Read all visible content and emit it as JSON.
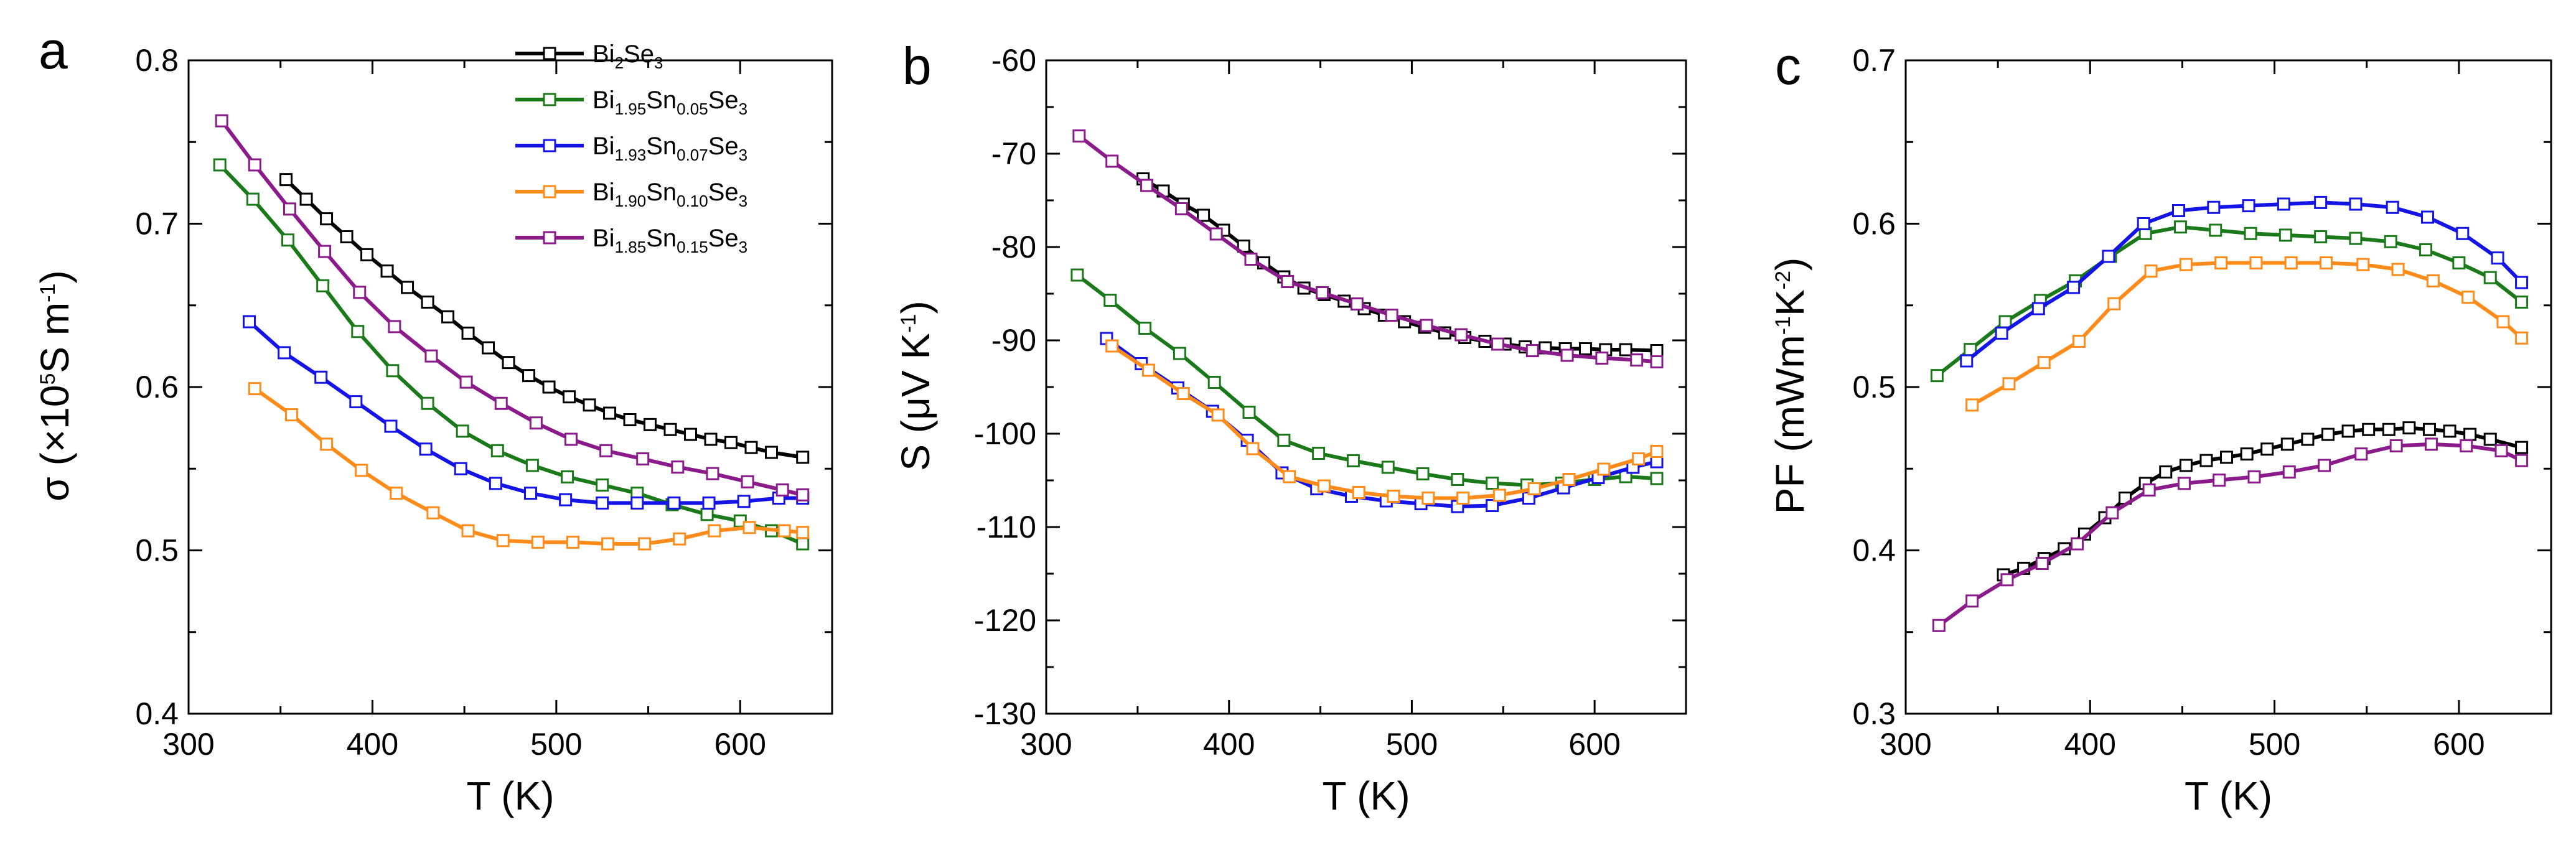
{
  "chart_data": [
    {
      "type": "line",
      "panel_label": "a",
      "xlabel": "T (K)",
      "ylabel": {
        "parts": [
          {
            "t": "σ (×10"
          },
          {
            "t": "5",
            "s": "sup"
          },
          {
            "t": "S m"
          },
          {
            "t": "-1",
            "s": "sup"
          },
          {
            "t": ")"
          }
        ]
      },
      "xlim": [
        300,
        650
      ],
      "ylim": [
        0.4,
        0.8
      ],
      "xticks": [
        300,
        400,
        500,
        600
      ],
      "yticks": [
        0.4,
        0.5,
        0.6,
        0.7,
        0.8
      ],
      "series": [
        {
          "name": "Bi2Se3",
          "color": "#000000",
          "x": [
            353,
            364,
            375,
            386,
            397,
            408,
            419,
            430,
            441,
            452,
            463,
            474,
            485,
            496,
            507,
            518,
            529,
            540,
            551,
            562,
            573,
            584,
            595,
            606,
            617,
            634
          ],
          "y": [
            0.727,
            0.715,
            0.703,
            0.692,
            0.681,
            0.671,
            0.661,
            0.652,
            0.643,
            0.633,
            0.624,
            0.615,
            0.607,
            0.6,
            0.594,
            0.589,
            0.584,
            0.58,
            0.577,
            0.574,
            0.571,
            0.568,
            0.566,
            0.563,
            0.56,
            0.557
          ]
        },
        {
          "name": "Bi1.95Sn0.05Se3",
          "color": "#1a7a1a",
          "x": [
            317,
            335,
            354,
            373,
            392,
            411,
            430,
            449,
            468,
            487,
            506,
            525,
            544,
            563,
            582,
            600,
            617,
            634
          ],
          "y": [
            0.736,
            0.715,
            0.69,
            0.662,
            0.634,
            0.61,
            0.59,
            0.573,
            0.561,
            0.552,
            0.545,
            0.54,
            0.535,
            0.528,
            0.522,
            0.518,
            0.512,
            0.504
          ]
        },
        {
          "name": "Bi1.93Sn0.07Se3",
          "color": "#1414e6",
          "x": [
            333,
            352,
            372,
            391,
            410,
            429,
            448,
            467,
            486,
            505,
            525,
            544,
            564,
            583,
            602,
            621,
            634
          ],
          "y": [
            0.64,
            0.621,
            0.606,
            0.591,
            0.576,
            0.562,
            0.55,
            0.541,
            0.535,
            0.531,
            0.529,
            0.529,
            0.529,
            0.529,
            0.53,
            0.532,
            0.532
          ]
        },
        {
          "name": "Bi1.90Sn0.10Se3",
          "color": "#ff8c1a",
          "x": [
            336,
            356,
            375,
            394,
            413,
            433,
            452,
            471,
            490,
            509,
            528,
            548,
            567,
            586,
            605,
            624,
            634
          ],
          "y": [
            0.599,
            0.583,
            0.565,
            0.549,
            0.535,
            0.523,
            0.512,
            0.506,
            0.505,
            0.505,
            0.504,
            0.504,
            0.507,
            0.512,
            0.514,
            0.512,
            0.511
          ]
        },
        {
          "name": "Bi1.85Sn0.15Se3",
          "color": "#8b1a8b",
          "x": [
            318,
            336,
            355,
            374,
            393,
            412,
            432,
            451,
            470,
            489,
            508,
            527,
            547,
            566,
            585,
            604,
            623,
            634
          ],
          "y": [
            0.763,
            0.736,
            0.709,
            0.683,
            0.658,
            0.637,
            0.619,
            0.603,
            0.59,
            0.578,
            0.568,
            0.561,
            0.556,
            0.551,
            0.547,
            0.542,
            0.537,
            0.534
          ]
        }
      ],
      "legend": {
        "position": "top-right",
        "entries": [
          {
            "parts": [
              {
                "t": "Bi"
              },
              {
                "t": "2",
                "s": "sub"
              },
              {
                "t": "Se"
              },
              {
                "t": "3",
                "s": "sub"
              }
            ],
            "color": "#000000"
          },
          {
            "parts": [
              {
                "t": "Bi"
              },
              {
                "t": "1.95",
                "s": "sub"
              },
              {
                "t": "Sn"
              },
              {
                "t": "0.05",
                "s": "sub"
              },
              {
                "t": "Se"
              },
              {
                "t": "3",
                "s": "sub"
              }
            ],
            "color": "#1a7a1a"
          },
          {
            "parts": [
              {
                "t": "Bi"
              },
              {
                "t": "1.93",
                "s": "sub"
              },
              {
                "t": "Sn"
              },
              {
                "t": "0.07",
                "s": "sub"
              },
              {
                "t": "Se"
              },
              {
                "t": "3",
                "s": "sub"
              }
            ],
            "color": "#1414e6"
          },
          {
            "parts": [
              {
                "t": "Bi"
              },
              {
                "t": "1.90",
                "s": "sub"
              },
              {
                "t": "Sn"
              },
              {
                "t": "0.10",
                "s": "sub"
              },
              {
                "t": "Se"
              },
              {
                "t": "3",
                "s": "sub"
              }
            ],
            "color": "#ff8c1a"
          },
          {
            "parts": [
              {
                "t": "Bi"
              },
              {
                "t": "1.85",
                "s": "sub"
              },
              {
                "t": "Sn"
              },
              {
                "t": "0.15",
                "s": "sub"
              },
              {
                "t": "Se"
              },
              {
                "t": "3",
                "s": "sub"
              }
            ],
            "color": "#8b1a8b"
          }
        ]
      }
    },
    {
      "type": "line",
      "panel_label": "b",
      "xlabel": "T (K)",
      "ylabel": {
        "parts": [
          {
            "t": "S (μV K"
          },
          {
            "t": "-1",
            "s": "sup"
          },
          {
            "t": ")"
          }
        ]
      },
      "xlim": [
        300,
        650
      ],
      "ylim": [
        -130,
        -60
      ],
      "xticks": [
        300,
        400,
        500,
        600
      ],
      "yticks": [
        -130,
        -120,
        -110,
        -100,
        -90,
        -80,
        -70,
        -60
      ],
      "series": [
        {
          "name": "Bi2Se3",
          "color": "#000000",
          "x": [
            353,
            364,
            375,
            386,
            397,
            408,
            419,
            430,
            441,
            452,
            463,
            474,
            485,
            496,
            507,
            518,
            529,
            540,
            551,
            562,
            573,
            584,
            595,
            606,
            617,
            634
          ],
          "y": [
            -72.7,
            -74.0,
            -75.4,
            -76.6,
            -78.2,
            -79.9,
            -81.7,
            -83.2,
            -84.4,
            -85.1,
            -85.8,
            -86.6,
            -87.3,
            -88.0,
            -88.6,
            -89.2,
            -89.7,
            -90.1,
            -90.4,
            -90.7,
            -90.8,
            -90.9,
            -90.9,
            -91.0,
            -91.0,
            -91.1
          ]
        },
        {
          "name": "Bi1.95Sn0.05Se3",
          "color": "#1a7a1a",
          "x": [
            317,
            335,
            354,
            373,
            392,
            411,
            430,
            449,
            468,
            487,
            506,
            525,
            544,
            563,
            582,
            600,
            617,
            634
          ],
          "y": [
            -83.0,
            -85.7,
            -88.7,
            -91.4,
            -94.5,
            -97.7,
            -100.7,
            -102.1,
            -102.9,
            -103.6,
            -104.3,
            -104.9,
            -105.3,
            -105.5,
            -105.3,
            -104.9,
            -104.6,
            -104.8
          ]
        },
        {
          "name": "Bi1.93Sn0.07Se3",
          "color": "#1414e6",
          "x": [
            333,
            352,
            372,
            391,
            410,
            429,
            448,
            467,
            486,
            505,
            525,
            544,
            564,
            583,
            602,
            621,
            634
          ],
          "y": [
            -89.8,
            -92.5,
            -95.1,
            -97.6,
            -100.7,
            -104.2,
            -105.9,
            -106.7,
            -107.2,
            -107.5,
            -107.8,
            -107.7,
            -106.9,
            -105.8,
            -104.7,
            -103.6,
            -103.0
          ]
        },
        {
          "name": "Bi1.90Sn0.10Se3",
          "color": "#ff8c1a",
          "x": [
            336,
            356,
            375,
            394,
            413,
            433,
            452,
            471,
            490,
            509,
            528,
            548,
            567,
            586,
            605,
            624,
            634
          ],
          "y": [
            -90.6,
            -93.2,
            -95.7,
            -98.0,
            -101.6,
            -104.6,
            -105.6,
            -106.3,
            -106.7,
            -106.9,
            -106.9,
            -106.6,
            -105.9,
            -104.9,
            -103.8,
            -102.7,
            -101.9
          ]
        },
        {
          "name": "Bi1.85Sn0.15Se3",
          "color": "#8b1a8b",
          "x": [
            318,
            336,
            355,
            374,
            393,
            412,
            432,
            451,
            470,
            489,
            508,
            527,
            547,
            566,
            585,
            604,
            623,
            634
          ],
          "y": [
            -68.1,
            -70.8,
            -73.4,
            -75.9,
            -78.6,
            -81.3,
            -83.7,
            -84.9,
            -86.1,
            -87.3,
            -88.4,
            -89.4,
            -90.4,
            -91.1,
            -91.6,
            -91.9,
            -92.1,
            -92.3
          ]
        }
      ]
    },
    {
      "type": "line",
      "panel_label": "c",
      "xlabel": "T (K)",
      "ylabel": {
        "parts": [
          {
            "t": "PF (mWm"
          },
          {
            "t": "-1",
            "s": "sup"
          },
          {
            "t": "K"
          },
          {
            "t": "-2",
            "s": "sup"
          },
          {
            "t": ")"
          }
        ]
      },
      "xlim": [
        300,
        650
      ],
      "ylim": [
        0.3,
        0.7
      ],
      "xticks": [
        300,
        400,
        500,
        600
      ],
      "yticks": [
        0.3,
        0.4,
        0.5,
        0.6,
        0.7
      ],
      "series": [
        {
          "name": "Bi2Se3",
          "color": "#000000",
          "x": [
            353,
            364,
            375,
            386,
            397,
            408,
            419,
            430,
            441,
            452,
            463,
            474,
            485,
            496,
            507,
            518,
            529,
            540,
            551,
            562,
            573,
            584,
            595,
            606,
            617,
            634
          ],
          "y": [
            0.385,
            0.389,
            0.395,
            0.401,
            0.41,
            0.42,
            0.432,
            0.441,
            0.448,
            0.452,
            0.455,
            0.457,
            0.459,
            0.462,
            0.465,
            0.468,
            0.471,
            0.473,
            0.474,
            0.474,
            0.475,
            0.474,
            0.473,
            0.471,
            0.468,
            0.463
          ]
        },
        {
          "name": "Bi1.95Sn0.05Se3",
          "color": "#1a7a1a",
          "x": [
            317,
            335,
            354,
            373,
            392,
            411,
            430,
            449,
            468,
            487,
            506,
            525,
            544,
            563,
            582,
            600,
            617,
            634
          ],
          "y": [
            0.507,
            0.523,
            0.54,
            0.553,
            0.565,
            0.58,
            0.594,
            0.598,
            0.596,
            0.594,
            0.593,
            0.592,
            0.591,
            0.589,
            0.584,
            0.576,
            0.567,
            0.552
          ]
        },
        {
          "name": "Bi1.93Sn0.07Se3",
          "color": "#1414e6",
          "x": [
            333,
            352,
            372,
            391,
            410,
            429,
            448,
            467,
            486,
            505,
            525,
            544,
            564,
            583,
            602,
            621,
            634
          ],
          "y": [
            0.516,
            0.533,
            0.548,
            0.561,
            0.58,
            0.6,
            0.608,
            0.61,
            0.611,
            0.612,
            0.613,
            0.612,
            0.61,
            0.604,
            0.594,
            0.579,
            0.564
          ]
        },
        {
          "name": "Bi1.90Sn0.10Se3",
          "color": "#ff8c1a",
          "x": [
            336,
            356,
            375,
            394,
            413,
            433,
            452,
            471,
            490,
            509,
            528,
            548,
            567,
            586,
            605,
            624,
            634
          ],
          "y": [
            0.489,
            0.502,
            0.515,
            0.528,
            0.551,
            0.571,
            0.575,
            0.576,
            0.576,
            0.576,
            0.576,
            0.575,
            0.572,
            0.565,
            0.555,
            0.54,
            0.53
          ]
        },
        {
          "name": "Bi1.85Sn0.15Se3",
          "color": "#8b1a8b",
          "x": [
            318,
            336,
            355,
            374,
            393,
            412,
            432,
            451,
            470,
            489,
            508,
            527,
            547,
            566,
            585,
            604,
            623,
            634
          ],
          "y": [
            0.354,
            0.369,
            0.382,
            0.392,
            0.404,
            0.423,
            0.437,
            0.441,
            0.443,
            0.445,
            0.448,
            0.452,
            0.459,
            0.464,
            0.465,
            0.464,
            0.461,
            0.455
          ]
        }
      ]
    }
  ]
}
